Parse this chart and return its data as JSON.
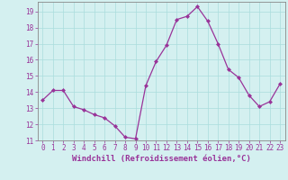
{
  "x": [
    0,
    1,
    2,
    3,
    4,
    5,
    6,
    7,
    8,
    9,
    10,
    11,
    12,
    13,
    14,
    15,
    16,
    17,
    18,
    19,
    20,
    21,
    22,
    23
  ],
  "y": [
    13.5,
    14.1,
    14.1,
    13.1,
    12.9,
    12.6,
    12.4,
    11.9,
    11.2,
    11.1,
    14.4,
    15.9,
    16.9,
    18.5,
    18.7,
    19.3,
    18.4,
    17.0,
    15.4,
    14.9,
    13.8,
    13.1,
    13.4,
    14.5
  ],
  "line_color": "#993399",
  "marker_color": "#993399",
  "bg_color": "#d4f0f0",
  "grid_color": "#aadddd",
  "tick_color": "#993399",
  "xlabel": "Windchill (Refroidissement éolien,°C)",
  "ylim": [
    11,
    19.6
  ],
  "xlim": [
    -0.5,
    23.5
  ],
  "yticks": [
    11,
    12,
    13,
    14,
    15,
    16,
    17,
    18,
    19
  ],
  "xticks": [
    0,
    1,
    2,
    3,
    4,
    5,
    6,
    7,
    8,
    9,
    10,
    11,
    12,
    13,
    14,
    15,
    16,
    17,
    18,
    19,
    20,
    21,
    22,
    23
  ],
  "font_size": 5.5,
  "label_font_size": 6.5
}
